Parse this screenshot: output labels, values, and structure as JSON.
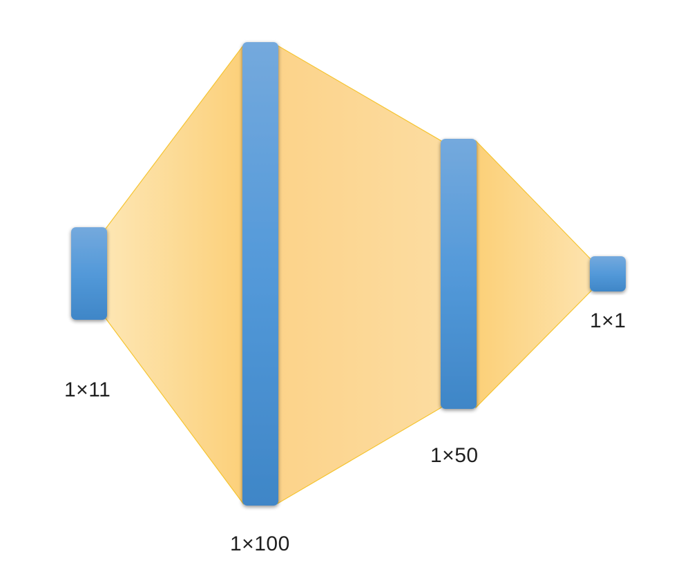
{
  "diagram": {
    "layers": [
      {
        "id": "input",
        "label": "1×11"
      },
      {
        "id": "hidden1",
        "label": "1×100"
      },
      {
        "id": "hidden2",
        "label": "1×50"
      },
      {
        "id": "output",
        "label": "1×1"
      }
    ],
    "colors": {
      "connection_light": "#fde2a6",
      "connection_mid": "#fcd88a",
      "connection_dark": "#fbd27a",
      "connection_stroke": "#f5c431",
      "layer_top": "#72a9dd",
      "layer_mid": "#5198d8",
      "layer_bottom": "#3f86c7"
    }
  }
}
